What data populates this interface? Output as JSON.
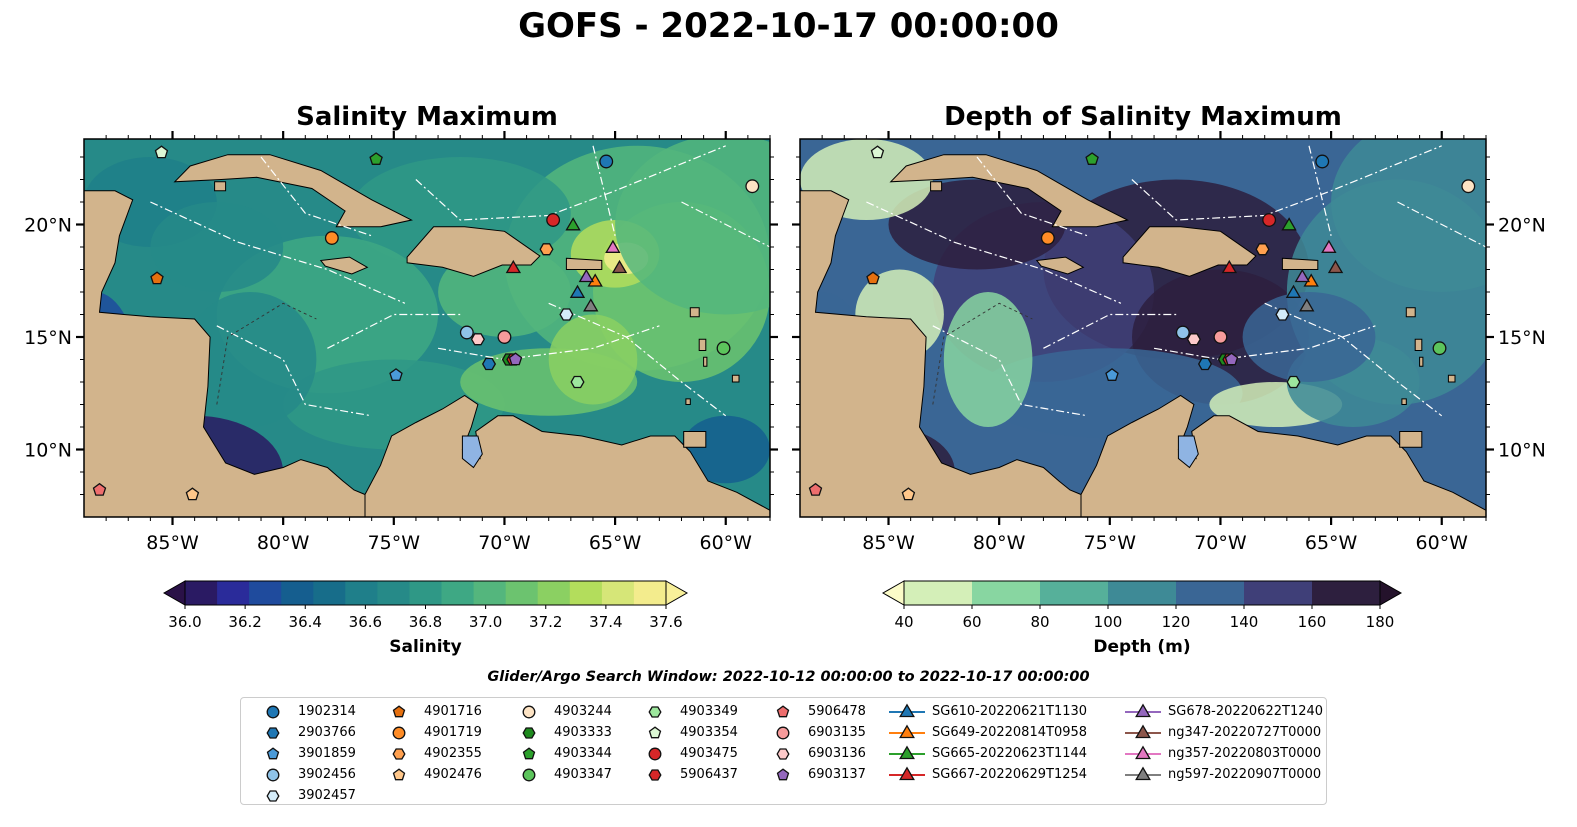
{
  "title": "GOFS - 2022-10-17 00:00:00",
  "panels": [
    {
      "title": "Salinity Maximum"
    },
    {
      "title": "Depth of Salinity Maximum"
    }
  ],
  "axes": {
    "lon_ticks": [
      "85°W",
      "80°W",
      "75°W",
      "70°W",
      "65°W",
      "60°W"
    ],
    "lat_ticks": [
      "20°N",
      "15°N",
      "10°N"
    ]
  },
  "colorbars": [
    {
      "label": "Salinity",
      "ticks": [
        "36.0",
        "36.2",
        "36.4",
        "36.6",
        "36.8",
        "37.0",
        "37.2",
        "37.4",
        "37.6"
      ],
      "range": [
        36.0,
        37.6
      ],
      "colors": [
        "#2a1a63",
        "#2a2b9a",
        "#1f4b9d",
        "#155e8f",
        "#176d8a",
        "#1f7f8a",
        "#268a88",
        "#2f9886",
        "#3ea884",
        "#54b67d",
        "#6cc36f",
        "#8bd062",
        "#b3dd5c",
        "#d6e678",
        "#f3ec8d"
      ]
    },
    {
      "label": "Depth (m)",
      "ticks": [
        "40",
        "60",
        "80",
        "100",
        "120",
        "140",
        "160",
        "180"
      ],
      "range": [
        40,
        180
      ],
      "colors": [
        "#d4efb8",
        "#88d6a1",
        "#56b09a",
        "#3e8a96",
        "#3a6695",
        "#3f3f78",
        "#2d1f3e"
      ]
    }
  ],
  "search_window": "Glider/Argo Search Window: 2022-10-12 00:00:00 to 2022-10-17 00:00:00",
  "legend": [
    {
      "label": "1902314",
      "marker": "circle",
      "color": "#1f77b4"
    },
    {
      "label": "2903766",
      "marker": "hexagon",
      "color": "#1f77b4"
    },
    {
      "label": "3901859",
      "marker": "pentagon",
      "color": "#4a9ad8"
    },
    {
      "label": "3902456",
      "marker": "circle",
      "color": "#8fc3e8"
    },
    {
      "label": "3902457",
      "marker": "hexagon",
      "color": "#d4ecf9"
    },
    {
      "label": "4901716",
      "marker": "pentagon",
      "color": "#e6700f"
    },
    {
      "label": "4901719",
      "marker": "circle",
      "color": "#ff8c26"
    },
    {
      "label": "4902355",
      "marker": "hexagon",
      "color": "#ffa04f"
    },
    {
      "label": "4902476",
      "marker": "pentagon",
      "color": "#ffc78a"
    },
    {
      "label": "4903244",
      "marker": "circle",
      "color": "#fde3c4"
    },
    {
      "label": "4903333",
      "marker": "hexagon",
      "color": "#1e8a1e"
    },
    {
      "label": "4903344",
      "marker": "pentagon",
      "color": "#2ca02c"
    },
    {
      "label": "4903347",
      "marker": "circle",
      "color": "#5cc45c"
    },
    {
      "label": "4903349",
      "marker": "hexagon",
      "color": "#9de79d"
    },
    {
      "label": "4903354",
      "marker": "pentagon",
      "color": "#dcf7d4"
    },
    {
      "label": "4903475",
      "marker": "circle",
      "color": "#d62728"
    },
    {
      "label": "5906437",
      "marker": "hexagon",
      "color": "#d62728"
    },
    {
      "label": "5906478",
      "marker": "pentagon",
      "color": "#ee6e6e"
    },
    {
      "label": "6903135",
      "marker": "circle",
      "color": "#f79b9b"
    },
    {
      "label": "6903136",
      "marker": "hexagon",
      "color": "#fcc9c9"
    },
    {
      "label": "6903137",
      "marker": "pentagon",
      "color": "#9467bd"
    },
    {
      "label": "SG610-20220621T1130",
      "marker": "triangle",
      "color": "#1f77b4"
    },
    {
      "label": "SG649-20220814T0958",
      "marker": "triangle",
      "color": "#ff7f0e"
    },
    {
      "label": "SG665-20220623T1144",
      "marker": "triangle",
      "color": "#2ca02c"
    },
    {
      "label": "SG667-20220629T1254",
      "marker": "triangle",
      "color": "#d62728"
    },
    {
      "label": "SG678-20220622T1240",
      "marker": "triangle",
      "color": "#9467bd"
    },
    {
      "label": "ng347-20220727T0000",
      "marker": "triangle",
      "color": "#8c564b"
    },
    {
      "label": "ng357-20220803T0000",
      "marker": "triangle",
      "color": "#e377c2"
    },
    {
      "label": "ng597-20220907T0000",
      "marker": "triangle",
      "color": "#7f7f7f"
    }
  ],
  "platforms": [
    {
      "id": "1902314",
      "lon": -65.4,
      "lat": 22.8
    },
    {
      "id": "2903766",
      "lon": -70.7,
      "lat": 13.8
    },
    {
      "id": "3901859",
      "lon": -74.9,
      "lat": 13.3
    },
    {
      "id": "3902456",
      "lon": -71.7,
      "lat": 15.2
    },
    {
      "id": "3902457",
      "lon": -67.2,
      "lat": 16.0
    },
    {
      "id": "4901716",
      "lon": -85.7,
      "lat": 17.6
    },
    {
      "id": "4901719",
      "lon": -77.8,
      "lat": 19.4
    },
    {
      "id": "4902355",
      "lon": -68.1,
      "lat": 18.9
    },
    {
      "id": "4902476",
      "lon": -84.1,
      "lat": 8.0
    },
    {
      "id": "4903244",
      "lon": -58.8,
      "lat": 21.7
    },
    {
      "id": "4903333",
      "lon": -69.8,
      "lat": 14.0
    },
    {
      "id": "4903344",
      "lon": -75.8,
      "lat": 22.9
    },
    {
      "id": "4903347",
      "lon": -60.1,
      "lat": 14.5
    },
    {
      "id": "4903349",
      "lon": -66.7,
      "lat": 13.0
    },
    {
      "id": "4903354",
      "lon": -85.5,
      "lat": 23.2
    },
    {
      "id": "4903475",
      "lon": -67.8,
      "lat": 20.2
    },
    {
      "id": "5906437",
      "lon": -69.6,
      "lat": 14.0
    },
    {
      "id": "5906478",
      "lon": -88.3,
      "lat": 8.2
    },
    {
      "id": "6903135",
      "lon": -70.0,
      "lat": 15.0
    },
    {
      "id": "6903136",
      "lon": -71.2,
      "lat": 14.9
    },
    {
      "id": "6903137",
      "lon": -69.5,
      "lat": 14.0
    },
    {
      "id": "SG610-20220621T1130",
      "lon": -66.7,
      "lat": 17.0
    },
    {
      "id": "SG649-20220814T0958",
      "lon": -65.9,
      "lat": 17.5
    },
    {
      "id": "SG665-20220623T1144",
      "lon": -66.9,
      "lat": 20.0
    },
    {
      "id": "SG667-20220629T1254",
      "lon": -69.6,
      "lat": 18.1
    },
    {
      "id": "SG678-20220622T1240",
      "lon": -66.3,
      "lat": 17.7
    },
    {
      "id": "ng347-20220727T0000",
      "lon": -64.8,
      "lat": 18.1
    },
    {
      "id": "ng357-20220803T0000",
      "lon": -65.1,
      "lat": 19.0
    },
    {
      "id": "ng597-20220907T0000",
      "lon": -66.1,
      "lat": 16.4
    }
  ]
}
